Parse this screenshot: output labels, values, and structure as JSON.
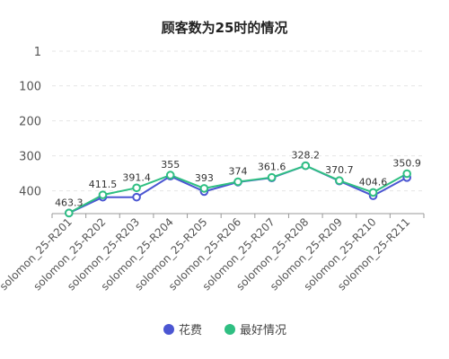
{
  "chart_data": {
    "type": "line",
    "title": "顾客数为25时的情况",
    "categories": [
      "solomon_25-R201",
      "solomon_25-R202",
      "solomon_25-R203",
      "solomon_25-R204",
      "solomon_25-R205",
      "solomon_25-R206",
      "solomon_25-R207",
      "solomon_25-R208",
      "solomon_25-R209",
      "solomon_25-R210",
      "solomon_25-R211"
    ],
    "y_axis": {
      "ticks": [
        1,
        100,
        200,
        300,
        400
      ],
      "range": [
        1,
        465
      ],
      "inverted": true,
      "grid": true
    },
    "series": [
      {
        "name": "花费",
        "color": "#4b56d2",
        "values": [
          463.3,
          418,
          418,
          358,
          402,
          375,
          363,
          328.2,
          372,
          414,
          362
        ]
      },
      {
        "name": "最好情况",
        "color": "#2fbf82",
        "values": [
          463.3,
          411.5,
          391.4,
          355,
          393,
          374,
          361.6,
          328.2,
          370.7,
          404.6,
          350.9
        ]
      }
    ],
    "data_labels": [
      "463.3",
      "411.5",
      "391.4",
      "355",
      "393",
      "374",
      "361.6",
      "328.2",
      "370.7",
      "404.6",
      "350.9"
    ],
    "legend": {
      "position": "bottom"
    }
  }
}
